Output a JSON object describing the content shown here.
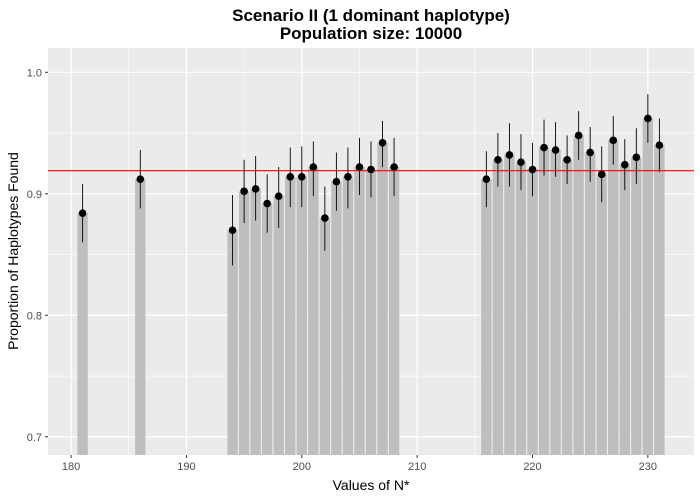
{
  "chart_data": {
    "type": "bar",
    "title": "Scenario II (1 dominant haplotype)",
    "subtitle": "Population size: 10000",
    "xlabel": "Values of N*",
    "ylabel": "Proportion of Haplotypes Found",
    "xlim": [
      178,
      234
    ],
    "ylim": [
      0.685,
      1.02
    ],
    "x_ticks": [
      180,
      190,
      200,
      210,
      220,
      230
    ],
    "y_ticks": [
      0.7,
      0.8,
      0.9,
      1.0
    ],
    "y_tick_labels": [
      "0.7",
      "0.8",
      "0.9",
      "1.0"
    ],
    "reference_line": {
      "y": 0.919,
      "color": "#ff0000"
    },
    "grid": true,
    "colors": {
      "panel": "#ebebeb",
      "grid": "#ffffff",
      "bar": "#bebebe",
      "point": "#000000",
      "errorbar": "#000000"
    },
    "series": [
      {
        "x": [
          181,
          186,
          194,
          195,
          196,
          197,
          198,
          199,
          200,
          201,
          202,
          203,
          204,
          205,
          206,
          207,
          208,
          216,
          217,
          218,
          219,
          220,
          221,
          222,
          223,
          224,
          225,
          226,
          227,
          228,
          229,
          230,
          231
        ],
        "values": [
          0.884,
          0.912,
          0.87,
          0.902,
          0.904,
          0.892,
          0.898,
          0.914,
          0.914,
          0.922,
          0.88,
          0.91,
          0.914,
          0.922,
          0.92,
          0.942,
          0.922,
          0.912,
          0.928,
          0.932,
          0.926,
          0.92,
          0.938,
          0.936,
          0.928,
          0.948,
          0.934,
          0.916,
          0.944,
          0.924,
          0.93,
          0.962,
          0.94
        ],
        "lower": [
          0.86,
          0.888,
          0.841,
          0.876,
          0.878,
          0.868,
          0.872,
          0.889,
          0.889,
          0.898,
          0.853,
          0.886,
          0.888,
          0.899,
          0.897,
          0.922,
          0.898,
          0.889,
          0.906,
          0.906,
          0.903,
          0.898,
          0.915,
          0.914,
          0.908,
          0.928,
          0.91,
          0.893,
          0.924,
          0.903,
          0.908,
          0.942,
          0.918
        ],
        "upper": [
          0.908,
          0.936,
          0.899,
          0.928,
          0.931,
          0.916,
          0.922,
          0.938,
          0.939,
          0.943,
          0.906,
          0.934,
          0.938,
          0.946,
          0.943,
          0.96,
          0.946,
          0.935,
          0.95,
          0.958,
          0.949,
          0.942,
          0.961,
          0.959,
          0.948,
          0.968,
          0.955,
          0.939,
          0.964,
          0.945,
          0.954,
          0.982,
          0.962
        ]
      }
    ]
  }
}
